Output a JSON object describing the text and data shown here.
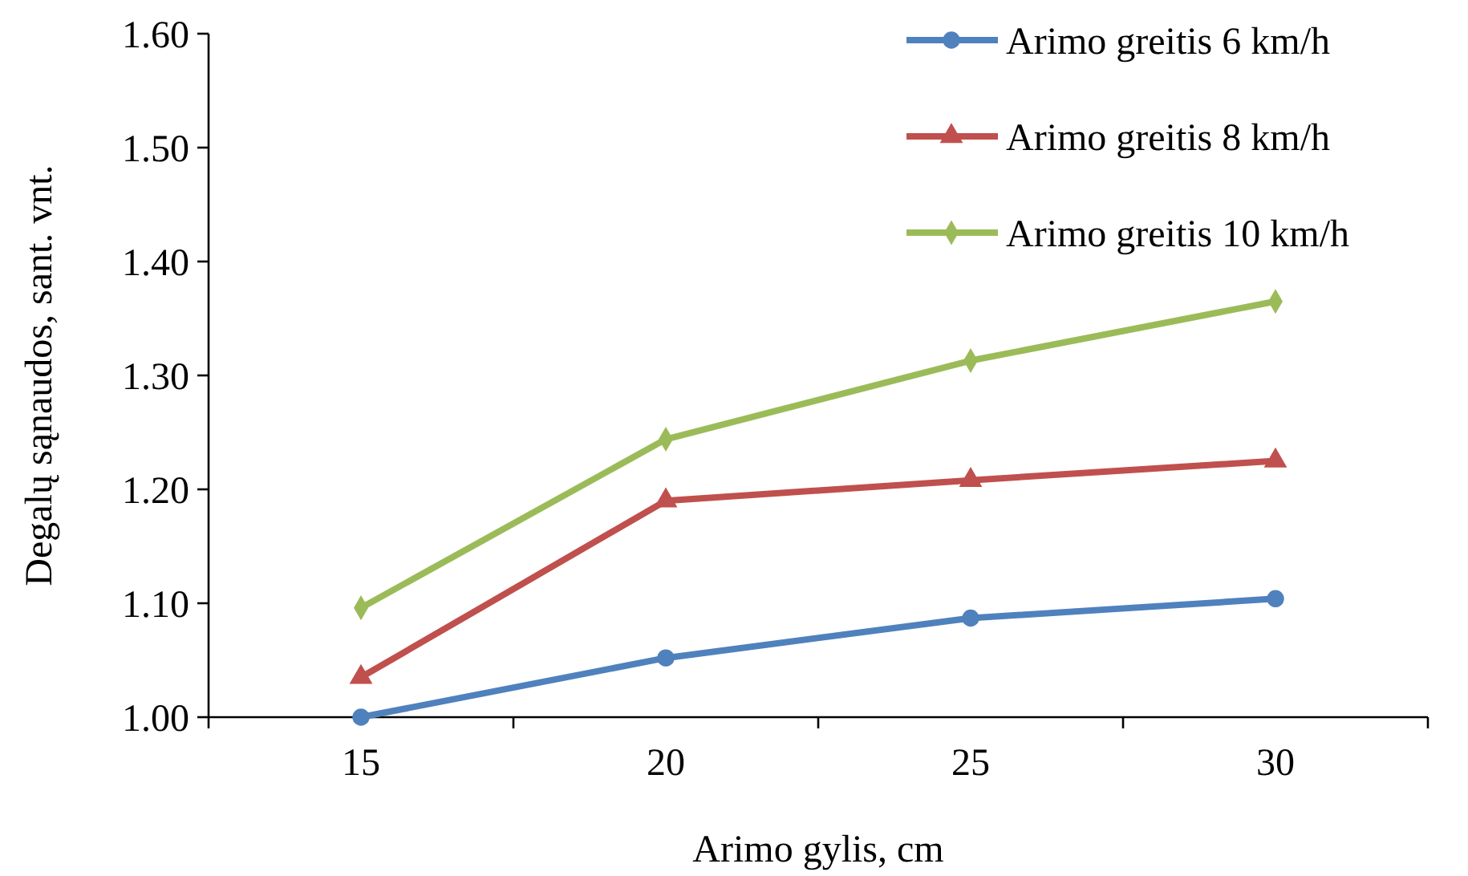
{
  "chart_data": {
    "type": "line",
    "xlabel": "Arimo gylis, cm",
    "ylabel": "Degalų sąnaudos, sant. vnt.",
    "categories": [
      "15",
      "20",
      "25",
      "30"
    ],
    "ylim": [
      1.0,
      1.6
    ],
    "yticks": [
      {
        "value": 1.0,
        "label": "1.00"
      },
      {
        "value": 1.1,
        "label": "1.10"
      },
      {
        "value": 1.2,
        "label": "1.20"
      },
      {
        "value": 1.3,
        "label": "1.30"
      },
      {
        "value": 1.4,
        "label": "1.40"
      },
      {
        "value": 1.5,
        "label": "1.50"
      },
      {
        "value": 1.6,
        "label": "1.60"
      }
    ],
    "grid": false,
    "legend": "top right",
    "series": [
      {
        "name": "Arimo greitis 6 km/h",
        "color": "#4f81bd",
        "marker": "circle",
        "values": [
          1.0,
          1.052,
          1.087,
          1.104
        ]
      },
      {
        "name": "Arimo greitis 8 km/h",
        "color": "#c0504d",
        "marker": "triangle",
        "values": [
          1.035,
          1.19,
          1.208,
          1.225
        ]
      },
      {
        "name": "Arimo greitis 10 km/h",
        "color": "#9bbb59",
        "marker": "diamond",
        "values": [
          1.096,
          1.244,
          1.313,
          1.365
        ]
      }
    ]
  }
}
